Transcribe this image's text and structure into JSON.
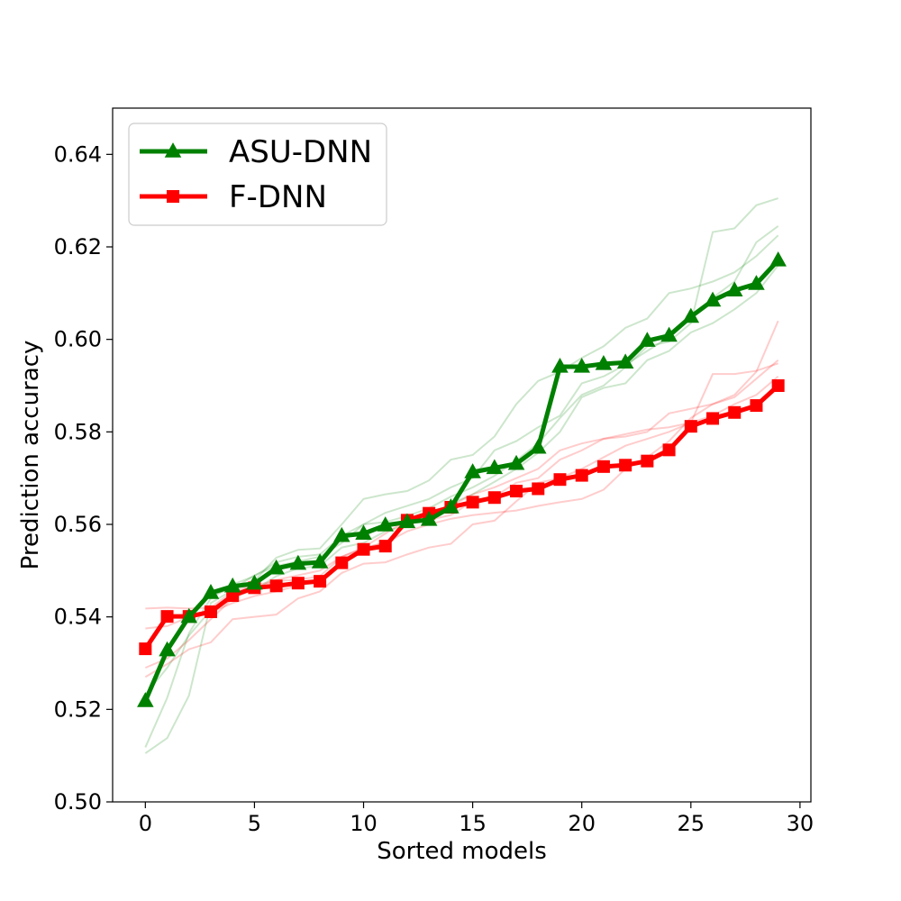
{
  "chart_data": {
    "type": "line",
    "title": "",
    "xlabel": "Sorted models",
    "ylabel": "Prediction accuracy",
    "xlim": [
      -1.5,
      30.5
    ],
    "ylim": [
      0.5,
      0.65
    ],
    "xticks": [
      0,
      5,
      10,
      15,
      20,
      25,
      30
    ],
    "xtick_labels": [
      "0",
      "5",
      "10",
      "15",
      "20",
      "25",
      "30"
    ],
    "yticks": [
      0.5,
      0.52,
      0.54,
      0.56,
      0.58,
      0.6,
      0.62,
      0.64
    ],
    "ytick_labels": [
      "0.50",
      "0.52",
      "0.54",
      "0.56",
      "0.58",
      "0.60",
      "0.62",
      "0.64"
    ],
    "grid": false,
    "legend": "top-left",
    "x": [
      0,
      1,
      2,
      3,
      4,
      5,
      6,
      7,
      8,
      9,
      10,
      11,
      12,
      13,
      14,
      15,
      16,
      17,
      18,
      19,
      20,
      21,
      22,
      23,
      24,
      25,
      26,
      27,
      28,
      29
    ],
    "series": [
      {
        "name": "ASU-DNN",
        "color": "#008000",
        "marker": "triangle",
        "values": [
          0.5218,
          0.5328,
          0.54,
          0.5452,
          0.5466,
          0.5472,
          0.5505,
          0.5515,
          0.5518,
          0.5575,
          0.558,
          0.5598,
          0.5605,
          0.561,
          0.5637,
          0.5713,
          0.5722,
          0.5731,
          0.5766,
          0.5941,
          0.5941,
          0.5947,
          0.595,
          0.5997,
          0.6008,
          0.6049,
          0.6084,
          0.6106,
          0.612,
          0.6171
        ]
      },
      {
        "name": "F-DNN",
        "color": "#ff0000",
        "marker": "square",
        "values": [
          0.5331,
          0.5401,
          0.5401,
          0.5411,
          0.5446,
          0.5463,
          0.5467,
          0.5473,
          0.5477,
          0.5517,
          0.5546,
          0.5553,
          0.5609,
          0.5624,
          0.5637,
          0.5648,
          0.5658,
          0.5672,
          0.5677,
          0.5697,
          0.5706,
          0.5725,
          0.5728,
          0.5737,
          0.5761,
          0.5812,
          0.5829,
          0.5842,
          0.5857,
          0.59
        ]
      }
    ],
    "background_runs": [
      {
        "color": "#008000",
        "values": [
          0.5105,
          0.5138,
          0.523,
          0.543,
          0.5458,
          0.5478,
          0.5528,
          0.5545,
          0.5548,
          0.56,
          0.5655,
          0.5665,
          0.5672,
          0.5695,
          0.574,
          0.575,
          0.579,
          0.586,
          0.591,
          0.593,
          0.596,
          0.5985,
          0.6025,
          0.6045,
          0.61,
          0.611,
          0.6125,
          0.6145,
          0.618,
          0.6225
        ]
      },
      {
        "color": "#008000",
        "values": [
          0.5118,
          0.5225,
          0.5365,
          0.544,
          0.547,
          0.5488,
          0.5518,
          0.553,
          0.5535,
          0.5575,
          0.56,
          0.5625,
          0.564,
          0.5655,
          0.568,
          0.57,
          0.576,
          0.578,
          0.581,
          0.5835,
          0.5905,
          0.592,
          0.5945,
          0.5975,
          0.6005,
          0.6045,
          0.609,
          0.6125,
          0.621,
          0.6245
        ]
      },
      {
        "color": "#008000",
        "values": [
          0.5232,
          0.529,
          0.536,
          0.5415,
          0.5445,
          0.5458,
          0.5488,
          0.5505,
          0.551,
          0.555,
          0.556,
          0.5585,
          0.5598,
          0.5618,
          0.5645,
          0.5665,
          0.5692,
          0.572,
          0.5755,
          0.58,
          0.5875,
          0.5895,
          0.5905,
          0.5955,
          0.5975,
          0.6015,
          0.6035,
          0.6065,
          0.61,
          0.616
        ]
      },
      {
        "color": "#008000",
        "values": [
          0.5212,
          0.5325,
          0.54,
          0.5448,
          0.546,
          0.549,
          0.551,
          0.552,
          0.553,
          0.556,
          0.56,
          0.5605,
          0.5618,
          0.5635,
          0.566,
          0.568,
          0.5705,
          0.5738,
          0.5775,
          0.583,
          0.588,
          0.59,
          0.594,
          0.5985,
          0.5995,
          0.6035,
          0.6232,
          0.624,
          0.629,
          0.6305
        ]
      },
      {
        "color": "#ff0000",
        "values": [
          0.527,
          0.5298,
          0.533,
          0.5345,
          0.5395,
          0.54,
          0.5405,
          0.544,
          0.5455,
          0.5495,
          0.5515,
          0.5518,
          0.5535,
          0.555,
          0.5558,
          0.56,
          0.5608,
          0.565,
          0.569,
          0.57,
          0.572,
          0.5745,
          0.577,
          0.5785,
          0.58,
          0.582,
          0.5925,
          0.5925,
          0.5932,
          0.5948
        ]
      },
      {
        "color": "#ff0000",
        "values": [
          0.529,
          0.531,
          0.535,
          0.5395,
          0.544,
          0.546,
          0.548,
          0.549,
          0.55,
          0.553,
          0.5548,
          0.556,
          0.5585,
          0.56,
          0.5612,
          0.562,
          0.5625,
          0.563,
          0.564,
          0.5648,
          0.5655,
          0.5675,
          0.572,
          0.5745,
          0.578,
          0.583,
          0.586,
          0.588,
          0.593,
          0.604
        ]
      },
      {
        "color": "#ff0000",
        "values": [
          0.5375,
          0.538,
          0.54,
          0.541,
          0.543,
          0.5445,
          0.5455,
          0.5468,
          0.548,
          0.552,
          0.555,
          0.556,
          0.56,
          0.561,
          0.562,
          0.565,
          0.566,
          0.569,
          0.57,
          0.574,
          0.576,
          0.5785,
          0.579,
          0.58,
          0.584,
          0.585,
          0.586,
          0.5875,
          0.5915,
          0.5955
        ]
      },
      {
        "color": "#ff0000",
        "values": [
          0.5418,
          0.542,
          0.5418,
          0.542,
          0.5455,
          0.5468,
          0.5478,
          0.548,
          0.5488,
          0.553,
          0.555,
          0.558,
          0.561,
          0.5625,
          0.564,
          0.5665,
          0.568,
          0.57,
          0.572,
          0.576,
          0.5775,
          0.5785,
          0.5795,
          0.5805,
          0.581,
          0.582,
          0.5835,
          0.586,
          0.588,
          0.592
        ]
      }
    ]
  }
}
